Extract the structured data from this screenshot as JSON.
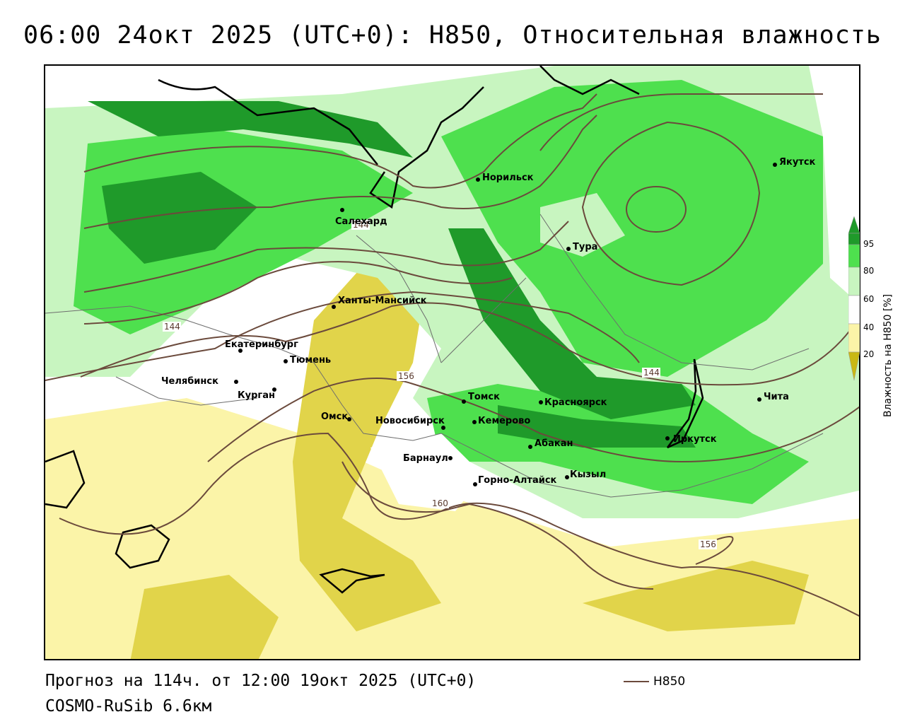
{
  "header": {
    "title": "06:00 24окт 2025 (UTC+0): H850, Относительная влажность"
  },
  "footer": {
    "forecast": "Прогноз на 114ч. от 12:00 19окт 2025 (UTC+0)",
    "model": "COSMO-RuSib 6.6км"
  },
  "legend": {
    "line_label": "H850",
    "line_color": "#6b4a3c"
  },
  "colorbar": {
    "label": "Влажность на H850 [%]",
    "ticks": [
      "95",
      "80",
      "60",
      "40",
      "20"
    ],
    "colors": {
      "very_dry": "#c9b815",
      "dry": "#e1d44a",
      "mid_dry": "#fbf4a8",
      "neutral": "#ffffff",
      "moist": "#c8f5c0",
      "wet": "#4ee04e",
      "very_wet": "#1f9a2a"
    }
  },
  "map": {
    "cities": [
      {
        "name": "Якутск"
      },
      {
        "name": "Норильск"
      },
      {
        "name": "Салехард"
      },
      {
        "name": "Тура"
      },
      {
        "name": "Ханты-Мансийск"
      },
      {
        "name": "Екатеринбург"
      },
      {
        "name": "Тюмень"
      },
      {
        "name": "Челябинск"
      },
      {
        "name": "Курган"
      },
      {
        "name": "Омск"
      },
      {
        "name": "Новосибирск"
      },
      {
        "name": "Томск"
      },
      {
        "name": "Кемерово"
      },
      {
        "name": "Красноярск"
      },
      {
        "name": "Абакан"
      },
      {
        "name": "Барнаул"
      },
      {
        "name": "Горно-Алтайск"
      },
      {
        "name": "Кызыл"
      },
      {
        "name": "Иркутск"
      },
      {
        "name": "Чита"
      }
    ],
    "contour_labels": [
      "144",
      "144",
      "156",
      "160",
      "144",
      "156"
    ]
  }
}
